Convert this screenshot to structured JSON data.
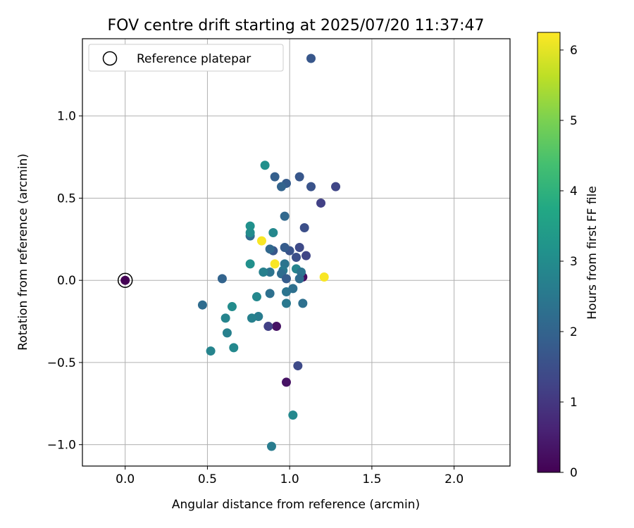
{
  "chart_data": {
    "type": "scatter",
    "title": "FOV centre drift starting at 2025/07/20 11:37:47",
    "xlabel": "Angular distance from reference (arcmin)",
    "ylabel": "Rotation from reference (arcmin)",
    "xlim": [
      -0.26,
      2.34
    ],
    "ylim": [
      -1.13,
      1.47
    ],
    "xticks": [
      0.0,
      0.5,
      1.0,
      1.5,
      2.0
    ],
    "xtick_labels": [
      "0.0",
      "0.5",
      "1.0",
      "1.5",
      "2.0"
    ],
    "yticks": [
      -1.0,
      -0.5,
      0.0,
      0.5,
      1.0
    ],
    "ytick_labels": [
      "−1.0",
      "−0.5",
      "0.0",
      "0.5",
      "1.0"
    ],
    "grid": true,
    "legend": {
      "position": "top-left",
      "entries": [
        "Reference platepar"
      ]
    },
    "colorbar": {
      "label": "Hours from first FF file",
      "min": 0,
      "max": 6.25,
      "colormap": "viridis",
      "ticks": [
        0,
        1,
        2,
        3,
        4,
        5,
        6
      ],
      "tick_labels": [
        "0",
        "1",
        "2",
        "3",
        "4",
        "5",
        "6"
      ]
    },
    "reference_point": {
      "x": 0.0,
      "y": 0.0
    },
    "points": [
      {
        "x": 0.0,
        "y": 0.0,
        "c": 0.0
      },
      {
        "x": 1.08,
        "y": 0.02,
        "c": 0.2
      },
      {
        "x": 0.92,
        "y": -0.28,
        "c": 0.3
      },
      {
        "x": 0.98,
        "y": -0.62,
        "c": 0.3
      },
      {
        "x": 0.87,
        "y": -0.28,
        "c": 1.2
      },
      {
        "x": 1.05,
        "y": -0.52,
        "c": 1.4
      },
      {
        "x": 1.13,
        "y": 1.35,
        "c": 1.7
      },
      {
        "x": 1.28,
        "y": 0.57,
        "c": 1.3
      },
      {
        "x": 1.19,
        "y": 0.47,
        "c": 1.2
      },
      {
        "x": 1.13,
        "y": 0.57,
        "c": 1.6
      },
      {
        "x": 1.06,
        "y": 0.63,
        "c": 1.7
      },
      {
        "x": 0.98,
        "y": 0.59,
        "c": 1.8
      },
      {
        "x": 0.91,
        "y": 0.63,
        "c": 1.9
      },
      {
        "x": 0.95,
        "y": 0.57,
        "c": 2.0
      },
      {
        "x": 0.97,
        "y": 0.39,
        "c": 2.1
      },
      {
        "x": 1.09,
        "y": 0.32,
        "c": 1.5
      },
      {
        "x": 1.1,
        "y": 0.15,
        "c": 1.3
      },
      {
        "x": 1.06,
        "y": 0.2,
        "c": 1.4
      },
      {
        "x": 1.04,
        "y": 0.14,
        "c": 1.5
      },
      {
        "x": 1.0,
        "y": 0.18,
        "c": 1.6
      },
      {
        "x": 0.97,
        "y": 0.2,
        "c": 1.8
      },
      {
        "x": 0.9,
        "y": 0.18,
        "c": 1.7
      },
      {
        "x": 0.88,
        "y": 0.19,
        "c": 2.1
      },
      {
        "x": 0.76,
        "y": 0.27,
        "c": 2.2
      },
      {
        "x": 0.76,
        "y": 0.29,
        "c": 3.0
      },
      {
        "x": 0.76,
        "y": 0.33,
        "c": 3.1
      },
      {
        "x": 0.9,
        "y": 0.29,
        "c": 2.9
      },
      {
        "x": 0.85,
        "y": 0.7,
        "c": 3.1
      },
      {
        "x": 0.83,
        "y": 0.24,
        "c": 6.2
      },
      {
        "x": 0.91,
        "y": 0.1,
        "c": 6.2
      },
      {
        "x": 1.21,
        "y": 0.02,
        "c": 6.2
      },
      {
        "x": 0.97,
        "y": 0.1,
        "c": 2.4
      },
      {
        "x": 0.96,
        "y": 0.06,
        "c": 2.5
      },
      {
        "x": 0.95,
        "y": 0.04,
        "c": 2.2
      },
      {
        "x": 0.98,
        "y": 0.01,
        "c": 1.8
      },
      {
        "x": 1.04,
        "y": 0.07,
        "c": 2.8
      },
      {
        "x": 1.07,
        "y": 0.05,
        "c": 2.4
      },
      {
        "x": 1.06,
        "y": 0.01,
        "c": 2.2
      },
      {
        "x": 0.88,
        "y": 0.05,
        "c": 2.4
      },
      {
        "x": 0.84,
        "y": 0.05,
        "c": 2.7
      },
      {
        "x": 0.76,
        "y": 0.1,
        "c": 3.1
      },
      {
        "x": 0.59,
        "y": 0.01,
        "c": 2.0
      },
      {
        "x": 0.47,
        "y": -0.15,
        "c": 2.2
      },
      {
        "x": 0.65,
        "y": -0.16,
        "c": 3.0
      },
      {
        "x": 0.8,
        "y": -0.1,
        "c": 2.9
      },
      {
        "x": 0.88,
        "y": -0.08,
        "c": 2.3
      },
      {
        "x": 0.98,
        "y": -0.07,
        "c": 2.4
      },
      {
        "x": 1.02,
        "y": -0.05,
        "c": 2.3
      },
      {
        "x": 0.98,
        "y": -0.14,
        "c": 2.5
      },
      {
        "x": 1.08,
        "y": -0.14,
        "c": 2.3
      },
      {
        "x": 0.81,
        "y": -0.22,
        "c": 2.6
      },
      {
        "x": 0.77,
        "y": -0.23,
        "c": 2.7
      },
      {
        "x": 0.61,
        "y": -0.23,
        "c": 2.8
      },
      {
        "x": 0.62,
        "y": -0.32,
        "c": 2.7
      },
      {
        "x": 0.66,
        "y": -0.41,
        "c": 2.9
      },
      {
        "x": 0.52,
        "y": -0.43,
        "c": 2.8
      },
      {
        "x": 1.02,
        "y": -0.82,
        "c": 2.9
      },
      {
        "x": 0.89,
        "y": -1.01,
        "c": 2.6
      }
    ]
  }
}
